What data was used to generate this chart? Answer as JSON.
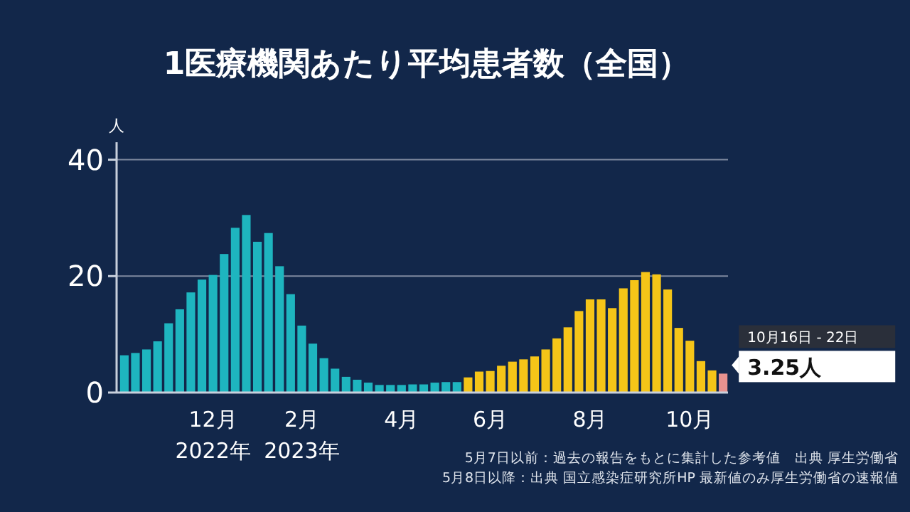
{
  "chart_data": {
    "type": "bar",
    "title": "1医療機関あたり平均患者数（全国）",
    "ylabel": "人",
    "categories": [
      null,
      null,
      null,
      null,
      null,
      null,
      null,
      null,
      "12月\n2022年",
      null,
      null,
      null,
      null,
      null,
      null,
      null,
      "2月\n2023年",
      null,
      null,
      null,
      null,
      null,
      null,
      null,
      null,
      "4月",
      null,
      null,
      null,
      null,
      null,
      null,
      null,
      "6月",
      null,
      null,
      null,
      null,
      null,
      null,
      null,
      null,
      "8月",
      null,
      null,
      null,
      null,
      null,
      null,
      null,
      null,
      "10月",
      null,
      null,
      null
    ],
    "values": [
      6.4,
      6.8,
      7.4,
      8.8,
      11.9,
      14.3,
      17.2,
      19.4,
      20.2,
      23.8,
      28.3,
      30.5,
      25.9,
      27.4,
      21.7,
      16.9,
      11.5,
      8.4,
      5.9,
      4.1,
      2.7,
      2.2,
      1.7,
      1.3,
      1.3,
      1.3,
      1.4,
      1.4,
      1.7,
      1.8,
      1.8,
      2.6,
      3.6,
      3.7,
      4.6,
      5.3,
      5.7,
      6.2,
      7.4,
      9.3,
      11.2,
      14.0,
      16.0,
      16.0,
      14.5,
      17.9,
      19.3,
      20.7,
      20.3,
      17.7,
      11.1,
      8.9,
      5.4,
      3.8,
      3.25
    ],
    "colors": [
      "#1eb5bf",
      "#1eb5bf",
      "#1eb5bf",
      "#1eb5bf",
      "#1eb5bf",
      "#1eb5bf",
      "#1eb5bf",
      "#1eb5bf",
      "#1eb5bf",
      "#1eb5bf",
      "#1eb5bf",
      "#1eb5bf",
      "#1eb5bf",
      "#1eb5bf",
      "#1eb5bf",
      "#1eb5bf",
      "#1eb5bf",
      "#1eb5bf",
      "#1eb5bf",
      "#1eb5bf",
      "#1eb5bf",
      "#1eb5bf",
      "#1eb5bf",
      "#1eb5bf",
      "#1eb5bf",
      "#1eb5bf",
      "#1eb5bf",
      "#1eb5bf",
      "#1eb5bf",
      "#1eb5bf",
      "#1eb5bf",
      "#f5c518",
      "#f5c518",
      "#f5c518",
      "#f5c518",
      "#f5c518",
      "#f5c518",
      "#f5c518",
      "#f5c518",
      "#f5c518",
      "#f5c518",
      "#f5c518",
      "#f5c518",
      "#f5c518",
      "#f5c518",
      "#f5c518",
      "#f5c518",
      "#f5c518",
      "#f5c518",
      "#f5c518",
      "#f5c518",
      "#f5c518",
      "#f5c518",
      "#f5c518",
      "#e8928f"
    ],
    "value_labels": [
      null,
      null,
      null,
      null,
      null,
      null,
      null,
      null,
      null,
      null,
      null,
      null,
      null,
      null,
      null,
      null,
      null,
      null,
      null,
      null,
      null,
      null,
      null,
      null,
      null,
      null,
      null,
      null,
      null,
      null,
      null,
      null,
      null,
      null,
      null,
      null,
      null,
      null,
      null,
      null,
      null,
      null,
      null,
      null,
      null,
      null,
      null,
      null,
      null,
      null,
      null,
      null,
      null,
      null,
      "3.25人"
    ],
    "ylim": [
      0,
      43
    ],
    "yticks": [
      0,
      20,
      40
    ],
    "grid": "y",
    "annotations": [
      "10月16日 - 22日",
      "5月7日以前：過去の報告をもとに集計した参考値　出典 厚生労働省",
      "5月8日以降：出典 国立感染症研究所HP 最新値のみ厚生労働省の速報値"
    ]
  }
}
